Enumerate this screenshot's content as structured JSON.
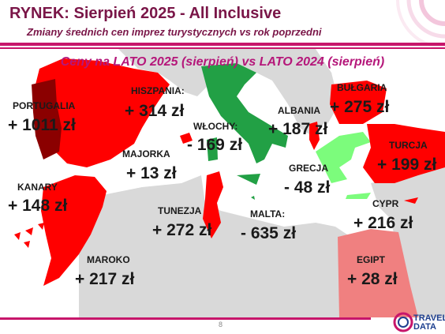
{
  "header": {
    "title": "RYNEK: Sierpień 2025 - All Inclusive",
    "subtitle": "Zmiany średnich cen imprez turystycznych vs rok poprzedni"
  },
  "map_title": "Ceny na LATO 2025 (sierpień) vs  LATO 2024 (sierpień)",
  "colors": {
    "sea": "#ffffff",
    "land": "#d9d9d9",
    "increase": "#ff0000",
    "increase_dark": "#8b0000",
    "increase_medium": "#b22222",
    "decrease": "#22a045",
    "decrease_light": "#7cfc7c",
    "egypt": "#f08080",
    "accent": "#c7166b"
  },
  "regions": [
    {
      "id": "portugalia",
      "label": "PORTUGALIA",
      "value": "+ 1011 zł"
    },
    {
      "id": "hiszpania",
      "label": "HISZPANIA:",
      "value": "+ 314 zł"
    },
    {
      "id": "majorka",
      "label": "MAJORKA",
      "value": "+ 13 zł"
    },
    {
      "id": "kanary",
      "label": "KANARY",
      "value": "+ 148 zł"
    },
    {
      "id": "maroko",
      "label": "MAROKO",
      "value": "+ 217 zł"
    },
    {
      "id": "tunezja",
      "label": "TUNEZJA",
      "value": "+ 272 zł"
    },
    {
      "id": "wlochy",
      "label": "WŁOCHY:",
      "value": "- 169 zł"
    },
    {
      "id": "malta",
      "label": "MALTA:",
      "value": "- 635 zł"
    },
    {
      "id": "albania",
      "label": "ALBANIA",
      "value": "+ 187 zł"
    },
    {
      "id": "grecja",
      "label": "GRECJA",
      "value": "- 48 zł"
    },
    {
      "id": "bulgaria",
      "label": "BUŁGARIA",
      "value": "+ 275 zł"
    },
    {
      "id": "turcja",
      "label": "TURCJA",
      "value": "+ 199 zł"
    },
    {
      "id": "cypr",
      "label": "CYPR",
      "value": "+ 216 zł"
    },
    {
      "id": "egipt",
      "label": "EGIPT",
      "value": "+ 28 zł"
    }
  ],
  "footer": {
    "page_number": "8",
    "logo_line1": "TRAVEL",
    "logo_line2": "DATA"
  }
}
